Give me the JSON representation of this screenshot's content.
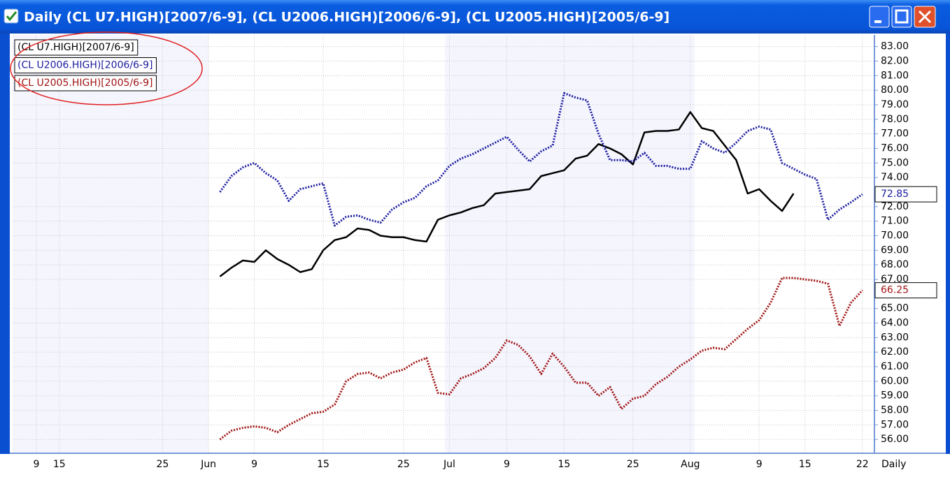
{
  "window": {
    "title": "Daily (CL U7.HIGH)[2007/6-9], (CL U2006.HIGH)[2006/6-9], (CL U2005.HIGH)[2005/6-9]"
  },
  "chart_data": {
    "type": "line",
    "interval_label": "Daily",
    "categories": [
      null,
      null,
      "9",
      null,
      "15",
      null,
      null,
      null,
      null,
      null,
      null,
      null,
      null,
      "25",
      null,
      null,
      null,
      "Jun",
      null,
      null,
      null,
      "9",
      null,
      null,
      null,
      null,
      null,
      "15",
      null,
      null,
      null,
      null,
      null,
      null,
      "25",
      null,
      null,
      null,
      "Jul",
      null,
      null,
      null,
      null,
      "9",
      null,
      null,
      null,
      null,
      "15",
      null,
      null,
      null,
      null,
      null,
      "25",
      null,
      null,
      null,
      null,
      "Aug",
      null,
      null,
      null,
      null,
      null,
      "9",
      null,
      null,
      null,
      "15",
      null,
      null,
      null,
      null,
      "22",
      null
    ],
    "series": [
      {
        "name": "(CL U7.HIGH)[2007/6-9]",
        "color": "#000000",
        "style": "solid",
        "last_value_label": false,
        "values": [
          null,
          null,
          null,
          null,
          null,
          null,
          null,
          null,
          null,
          null,
          null,
          null,
          null,
          null,
          null,
          null,
          null,
          null,
          67.2,
          67.8,
          68.3,
          68.2,
          69.0,
          68.4,
          68.0,
          67.5,
          67.7,
          69.0,
          69.7,
          69.9,
          70.5,
          70.4,
          70.0,
          69.9,
          69.9,
          69.7,
          69.6,
          71.1,
          71.4,
          71.6,
          71.9,
          72.1,
          72.9,
          73.0,
          73.1,
          73.2,
          74.1,
          74.3,
          74.5,
          75.3,
          75.5,
          76.3,
          76.0,
          75.6,
          74.9,
          77.1,
          77.2,
          77.2,
          77.3,
          78.5,
          77.4,
          77.2,
          76.2,
          75.2,
          72.9,
          73.2,
          72.4,
          71.7,
          72.9,
          null,
          null,
          null,
          null,
          null,
          null,
          null
        ]
      },
      {
        "name": "(CL U2006.HIGH)[2006/6-9]",
        "color": "#1c1ca0",
        "style": "dotted",
        "last_value_label": true,
        "values": [
          null,
          null,
          null,
          null,
          null,
          null,
          null,
          null,
          null,
          null,
          null,
          null,
          null,
          null,
          null,
          null,
          null,
          null,
          73.0,
          74.1,
          74.7,
          75.0,
          74.3,
          73.8,
          72.4,
          73.2,
          73.4,
          73.6,
          70.7,
          71.3,
          71.4,
          71.1,
          70.9,
          71.8,
          72.3,
          72.6,
          73.4,
          73.8,
          74.8,
          75.3,
          75.6,
          76.0,
          76.4,
          76.8,
          75.9,
          75.1,
          75.8,
          76.2,
          79.8,
          79.5,
          79.3,
          77.0,
          75.2,
          75.2,
          75.1,
          75.7,
          74.8,
          74.8,
          74.6,
          74.6,
          76.5,
          76.0,
          75.7,
          76.4,
          77.2,
          77.5,
          77.3,
          75.0,
          74.6,
          74.2,
          73.9,
          71.1,
          71.8,
          72.3,
          72.85,
          null
        ]
      },
      {
        "name": "(CL U2005.HIGH)[2005/6-9]",
        "color": "#a01414",
        "style": "dotted",
        "last_value_label": true,
        "values": [
          null,
          null,
          null,
          null,
          null,
          null,
          null,
          null,
          null,
          null,
          null,
          null,
          null,
          null,
          null,
          null,
          null,
          null,
          56.0,
          56.6,
          56.8,
          56.9,
          56.8,
          56.5,
          57.0,
          57.4,
          57.8,
          57.9,
          58.4,
          60.0,
          60.5,
          60.6,
          60.2,
          60.6,
          60.8,
          61.3,
          61.6,
          59.2,
          59.1,
          60.2,
          60.5,
          60.9,
          61.6,
          62.8,
          62.5,
          61.7,
          60.5,
          61.9,
          61.0,
          59.9,
          59.9,
          59.0,
          59.6,
          58.1,
          58.8,
          59.0,
          59.8,
          60.3,
          61.0,
          61.5,
          62.1,
          62.3,
          62.2,
          62.9,
          63.6,
          64.2,
          65.4,
          67.1,
          67.1,
          67.0,
          66.9,
          66.7,
          63.8,
          65.4,
          66.25,
          null
        ]
      }
    ],
    "ylim": [
      55.1,
      83.8
    ],
    "yticks": [
      {
        "value": 56,
        "label": "56.00"
      },
      {
        "value": 57,
        "label": "57.00"
      },
      {
        "value": 58,
        "label": "58.00"
      },
      {
        "value": 59,
        "label": "59.00"
      },
      {
        "value": 60,
        "label": "60.00"
      },
      {
        "value": 61,
        "label": "61.00"
      },
      {
        "value": 62,
        "label": "62.00"
      },
      {
        "value": 63,
        "label": "63.00"
      },
      {
        "value": 64,
        "label": "64.00"
      },
      {
        "value": 65,
        "label": "65.00"
      },
      {
        "value": 67,
        "label": "67.00"
      },
      {
        "value": 68,
        "label": "68.00"
      },
      {
        "value": 69,
        "label": "69.00"
      },
      {
        "value": 70,
        "label": "70.00"
      },
      {
        "value": 71,
        "label": "71.00"
      },
      {
        "value": 72,
        "label": "72.00"
      },
      {
        "value": 74,
        "label": "74.00"
      },
      {
        "value": 75,
        "label": "75.00"
      },
      {
        "value": 76,
        "label": "76.00"
      },
      {
        "value": 77,
        "label": "77.00"
      },
      {
        "value": 78,
        "label": "78.00"
      },
      {
        "value": 79,
        "label": "79.00"
      },
      {
        "value": 80,
        "label": "80.00"
      },
      {
        "value": 81,
        "label": "81.00"
      },
      {
        "value": 82,
        "label": "82.00"
      },
      {
        "value": 83,
        "label": "83.00"
      }
    ],
    "grid": true,
    "legend": "top-left"
  }
}
